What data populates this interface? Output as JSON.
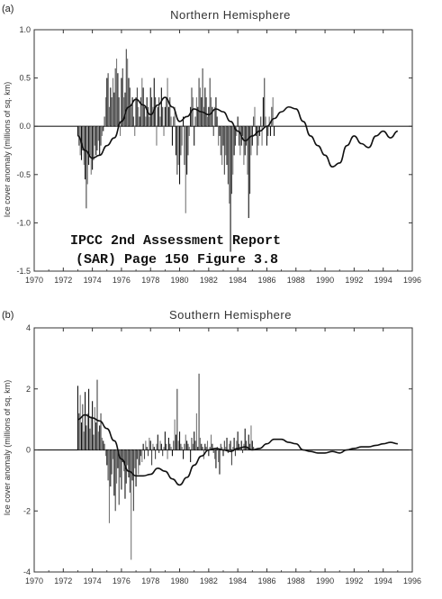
{
  "caption": {
    "line1": "IPCC 2nd Assessment Report",
    "line2": "(SAR) Page 150 Figure 3.8"
  },
  "chart_data": [
    {
      "type": "bar",
      "panel_label": "(a)",
      "title": "Northern Hemisphere",
      "ylabel": "Ice cover anomaly (millions of sq. km)",
      "xlabel": "",
      "xlim": [
        1970,
        1996
      ],
      "ylim": [
        -1.5,
        1.0
      ],
      "x_ticks": [
        "1970",
        "1972",
        "1974",
        "1976",
        "1978",
        "1980",
        "1982",
        "1984",
        "1986",
        "1988",
        "1990",
        "1992",
        "1994",
        "1996"
      ],
      "y_ticks": [
        "1.0",
        "0.5",
        "0.0",
        "-0.5",
        "-1.0",
        "-1.5"
      ],
      "grid": false,
      "smooth_curve": {
        "x": [
          1973.0,
          1973.5,
          1974.0,
          1974.5,
          1975.0,
          1975.5,
          1976.0,
          1976.5,
          1977.0,
          1977.5,
          1978.0,
          1978.5,
          1979.0,
          1979.5,
          1980.0,
          1980.5,
          1981.0,
          1981.5,
          1982.0,
          1982.5,
          1983.0,
          1983.5,
          1984.0,
          1984.5,
          1985.0,
          1985.5,
          1986.0,
          1986.5,
          1987.0,
          1987.5,
          1988.0,
          1988.5,
          1989.0,
          1989.5,
          1990.0,
          1990.5,
          1991.0,
          1991.5,
          1992.0,
          1992.5,
          1993.0,
          1993.5,
          1994.0,
          1994.5,
          1995.0
        ],
        "y": [
          -0.1,
          -0.25,
          -0.33,
          -0.3,
          -0.2,
          -0.12,
          0.05,
          0.2,
          0.28,
          0.22,
          0.12,
          0.22,
          0.3,
          0.2,
          0.05,
          0.1,
          0.18,
          0.15,
          0.12,
          0.18,
          0.15,
          0.05,
          -0.05,
          -0.15,
          -0.1,
          -0.05,
          0.0,
          0.08,
          0.15,
          0.2,
          0.18,
          0.05,
          -0.1,
          -0.2,
          -0.3,
          -0.42,
          -0.38,
          -0.2,
          -0.1,
          -0.18,
          -0.22,
          -0.1,
          -0.05,
          -0.12,
          -0.05
        ]
      },
      "bars": {
        "x_start": 1973.0,
        "step": 0.08333,
        "values": [
          -0.1,
          -0.2,
          -0.3,
          -0.35,
          -0.25,
          -0.4,
          -0.55,
          -0.85,
          -0.6,
          -0.4,
          -0.3,
          -0.5,
          -0.45,
          -0.35,
          -0.2,
          -0.3,
          -0.25,
          -0.15,
          -0.3,
          -0.2,
          -0.1,
          -0.05,
          0.1,
          0.3,
          0.5,
          0.55,
          0.2,
          0.4,
          0.3,
          0.5,
          0.35,
          0.6,
          0.7,
          0.55,
          0.3,
          -0.1,
          0.5,
          0.6,
          0.3,
          0.35,
          0.8,
          0.7,
          0.5,
          0.4,
          0.2,
          0.3,
          0.1,
          -0.1,
          0.3,
          0.4,
          0.2,
          0.1,
          0.3,
          0.5,
          0.4,
          0.2,
          0.1,
          0.3,
          0.2,
          0.1,
          0.4,
          0.3,
          0.2,
          0.5,
          0.3,
          -0.2,
          0.2,
          0.3,
          0.1,
          0.4,
          0.2,
          -0.1,
          0.2,
          0.3,
          0.5,
          0.2,
          0.3,
          0.1,
          -0.2,
          0.1,
          0.2,
          -0.3,
          -0.5,
          -0.4,
          -0.6,
          -0.3,
          -0.2,
          0.1,
          -0.4,
          -0.9,
          -0.5,
          -0.3,
          -0.1,
          0.2,
          0.4,
          0.3,
          -0.2,
          0.1,
          0.3,
          0.2,
          0.5,
          0.4,
          0.3,
          0.6,
          0.2,
          0.4,
          0.3,
          0.1,
          0.2,
          0.5,
          0.3,
          0.2,
          -0.1,
          0.2,
          0.3,
          0.1,
          -0.2,
          -0.1,
          -0.3,
          -0.4,
          -0.2,
          -0.5,
          -0.3,
          -0.4,
          -0.6,
          -0.8,
          -1.3,
          -0.7,
          -0.5,
          -0.3,
          -0.2,
          -0.1,
          0.1,
          -0.2,
          -0.3,
          -0.2,
          -0.1,
          -0.4,
          -0.3,
          -0.2,
          -0.5,
          -0.95,
          -0.7,
          -0.3,
          -0.2,
          0.1,
          0.2,
          -0.1,
          -0.3,
          -0.2,
          -0.1,
          0.1,
          -0.2,
          0.3,
          0.5,
          0.1,
          -0.2,
          -0.1,
          0.1,
          -0.1,
          0.2,
          0.3,
          -0.1
        ]
      }
    },
    {
      "type": "bar",
      "panel_label": "(b)",
      "title": "Southern Hemisphere",
      "ylabel": "Ice cover anomaly (millions of sq. km)",
      "xlabel": "",
      "xlim": [
        1970,
        1996
      ],
      "ylim": [
        -4,
        4
      ],
      "x_ticks": [
        "1970",
        "1972",
        "1974",
        "1976",
        "1978",
        "1980",
        "1982",
        "1984",
        "1986",
        "1988",
        "1990",
        "1992",
        "1994",
        "1996"
      ],
      "y_ticks": [
        "4",
        "2",
        "0",
        "-2",
        "-4"
      ],
      "grid": false,
      "smooth_curve": {
        "x": [
          1973.0,
          1973.5,
          1974.0,
          1974.5,
          1975.0,
          1975.5,
          1976.0,
          1976.5,
          1977.0,
          1977.5,
          1978.0,
          1978.5,
          1979.0,
          1979.5,
          1980.0,
          1980.5,
          1981.0,
          1981.5,
          1982.0,
          1982.5,
          1983.0,
          1983.5,
          1984.0,
          1984.5,
          1985.0,
          1985.5,
          1986.0,
          1986.5,
          1987.0,
          1987.5,
          1988.0,
          1988.5,
          1989.0,
          1989.5,
          1990.0,
          1990.5,
          1991.0,
          1991.5,
          1992.0,
          1992.5,
          1993.0,
          1993.5,
          1994.0,
          1994.5,
          1995.0
        ],
        "y": [
          1.0,
          1.15,
          1.05,
          0.95,
          0.7,
          0.3,
          -0.3,
          -0.7,
          -0.85,
          -0.85,
          -0.8,
          -0.6,
          -0.7,
          -0.95,
          -1.15,
          -0.9,
          -0.5,
          -0.2,
          0.0,
          0.05,
          0.0,
          -0.05,
          0.05,
          0.1,
          0.0,
          0.05,
          0.2,
          0.35,
          0.35,
          0.25,
          0.2,
          0.0,
          -0.05,
          -0.1,
          -0.1,
          -0.05,
          -0.1,
          0.0,
          0.05,
          0.1,
          0.1,
          0.15,
          0.2,
          0.25,
          0.2
        ]
      },
      "bars": {
        "x_start": 1973.0,
        "step": 0.08333,
        "values": [
          2.1,
          1.2,
          1.8,
          0.9,
          1.5,
          0.6,
          1.9,
          0.8,
          1.2,
          2.0,
          0.7,
          1.1,
          1.6,
          0.5,
          1.4,
          0.9,
          2.3,
          0.6,
          0.8,
          1.2,
          0.4,
          0.3,
          0.2,
          -0.2,
          -0.5,
          -1.0,
          -2.4,
          -1.2,
          -0.8,
          -0.3,
          -1.5,
          -2.0,
          -1.1,
          -0.6,
          -1.8,
          -0.9,
          -1.3,
          -0.4,
          -0.7,
          -1.6,
          -1.1,
          -0.5,
          -0.9,
          -1.4,
          -3.6,
          -1.0,
          -2.0,
          -0.6,
          -1.2,
          -0.3,
          -0.8,
          -0.5,
          -0.2,
          -0.4,
          0.2,
          -0.3,
          0.3,
          0.1,
          -0.2,
          0.4,
          0.3,
          -0.5,
          0.2,
          0.1,
          -0.3,
          0.2,
          0.5,
          -0.1,
          0.3,
          0.2,
          -0.2,
          0.1,
          0.6,
          0.2,
          -0.3,
          0.4,
          0.2,
          0.1,
          -0.2,
          0.3,
          1.0,
          0.5,
          2.0,
          0.3,
          0.6,
          0.2,
          0.1,
          -0.3,
          0.2,
          0.5,
          0.3,
          0.2,
          0.1,
          -0.4,
          0.4,
          0.2,
          0.6,
          0.3,
          1.2,
          0.1,
          2.5,
          0.4,
          0.2,
          0.1,
          -0.3,
          0.2,
          0.1,
          0.3,
          -0.2,
          0.1,
          0.5,
          0.2,
          -0.1,
          -0.3,
          -0.6,
          0.1,
          -0.4,
          -0.8,
          0.2,
          0.1,
          -0.2,
          0.3,
          0.1,
          0.4,
          -0.1,
          0.2,
          0.3,
          -0.5,
          0.1,
          0.4,
          -0.2,
          0.3,
          0.6,
          0.2,
          0.1,
          0.3,
          -0.1,
          0.2,
          0.7,
          0.3,
          0.1,
          0.5,
          0.2,
          0.8,
          0.3,
          0.1
        ]
      }
    }
  ]
}
